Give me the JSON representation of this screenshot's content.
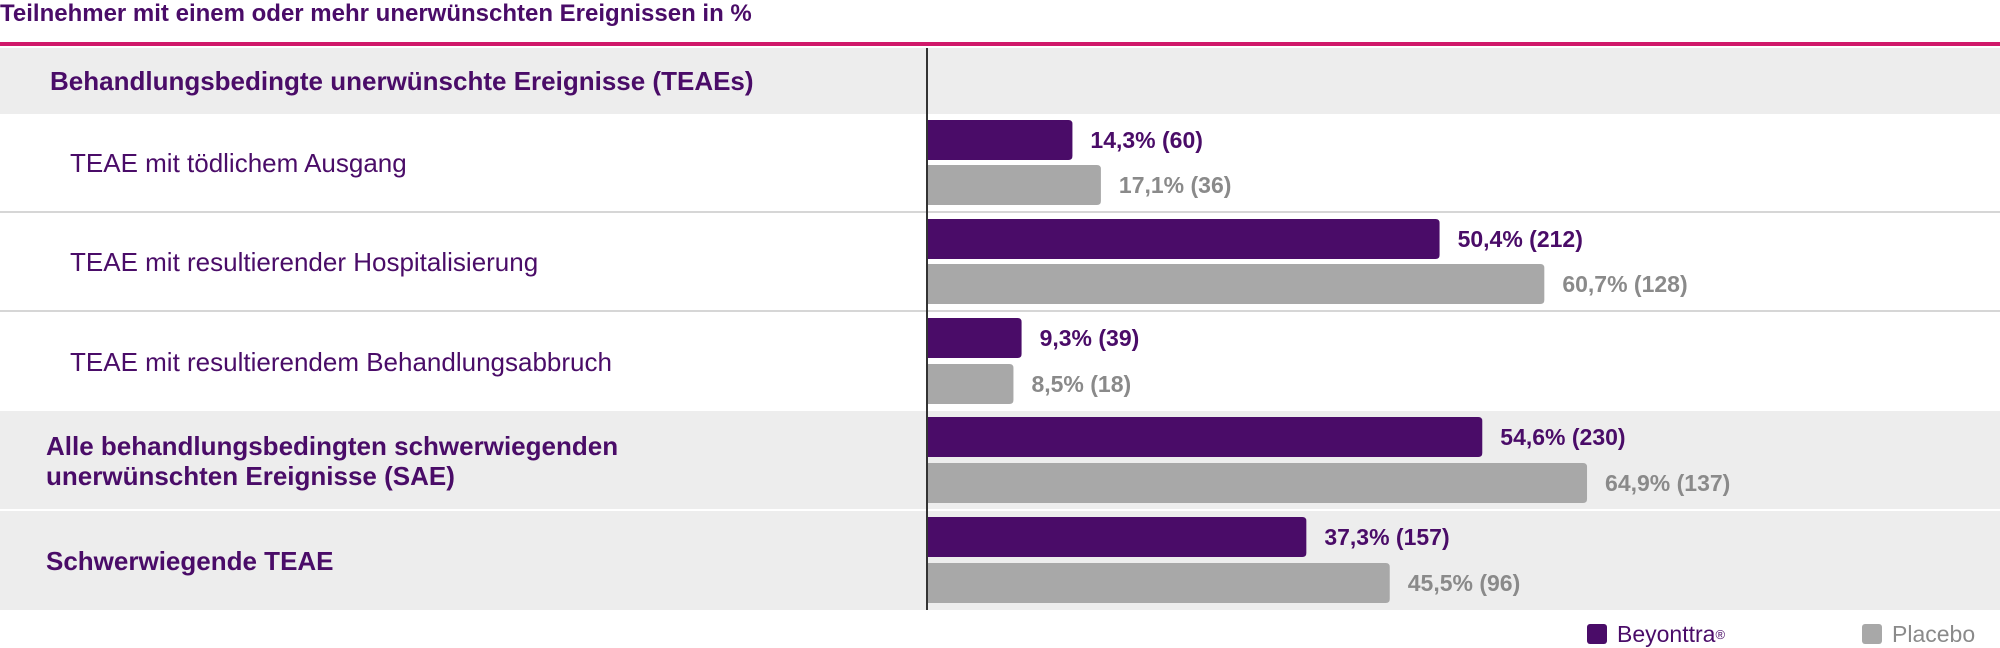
{
  "chart_data": {
    "type": "bar",
    "title": "Teilnehmer mit einem oder mehr unerwünschten Ereignissen in %",
    "orientation": "horizontal",
    "xlim": [
      0,
      100
    ],
    "rows": [
      {
        "label": "Behandlungsbedingte unerwünschte Ereignisse (TEAEs)",
        "style": "header"
      },
      {
        "label": "TEAE mit tödlichem Ausgang",
        "style": "sub",
        "beyonttra": 14.3,
        "beyonttra_label": "14,3% (60)",
        "placebo": 17.1,
        "placebo_label": "17,1% (36)"
      },
      {
        "label": "TEAE mit resultierender Hospitalisierung",
        "style": "sub",
        "beyonttra": 50.4,
        "beyonttra_label": "50,4% (212)",
        "placebo": 60.7,
        "placebo_label": "60,7% (128)"
      },
      {
        "label": "TEAE mit resultierendem Behandlungsabbruch",
        "style": "sub",
        "beyonttra": 9.3,
        "beyonttra_label": "9,3% (39)",
        "placebo": 8.5,
        "placebo_label": "8,5% (18)"
      },
      {
        "label": "Alle behandlungsbedingten schwerwiegenden unerwünschten Ereignisse (SAE)",
        "style": "main",
        "beyonttra": 54.6,
        "beyonttra_label": "54,6% (230)",
        "placebo": 64.9,
        "placebo_label": "64,9% (137)"
      },
      {
        "label": "Schwerwiegende TEAE",
        "style": "main",
        "beyonttra": 37.3,
        "beyonttra_label": "37,3% (157)",
        "placebo": 45.5,
        "placebo_label": "45,5% (96)"
      }
    ],
    "series": [
      {
        "name": "Beyonttra",
        "mark": "®",
        "color": "#4a0c68"
      },
      {
        "name": "Placebo",
        "mark": "",
        "color": "#a8a8a8"
      }
    ],
    "legend_position": "bottom-right"
  }
}
